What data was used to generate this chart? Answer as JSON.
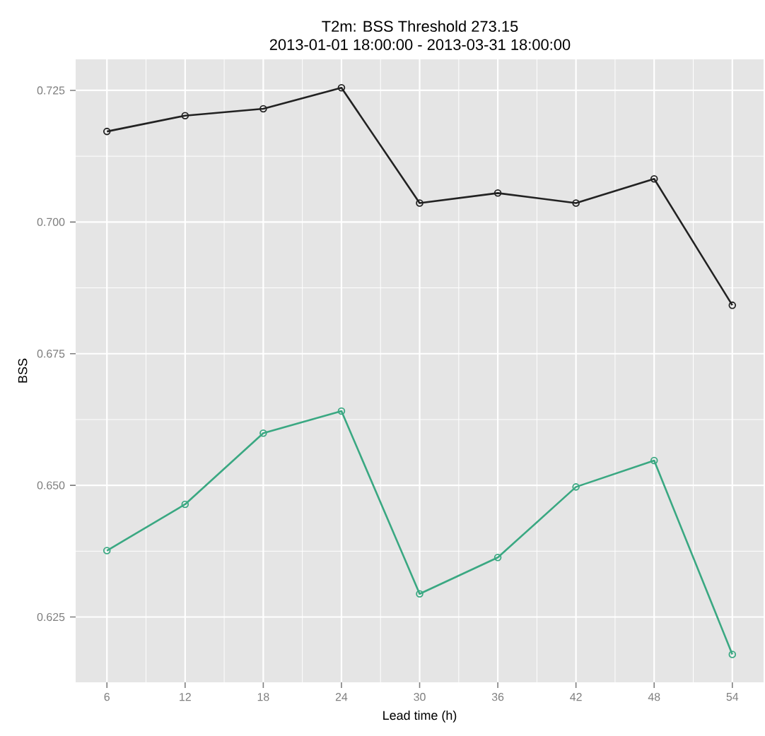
{
  "chart_data": {
    "type": "line",
    "title": "T2m: BSS Threshold 273.15",
    "subtitle": "2013-01-01 18:00:00 - 2013-03-31 18:00:00",
    "xlabel": "Lead time (h)",
    "ylabel": "BSS",
    "x": [
      6,
      12,
      18,
      24,
      30,
      36,
      42,
      48,
      54
    ],
    "series": [
      {
        "color": "#222222",
        "values": [
          0.7172,
          0.7202,
          0.7215,
          0.7255,
          0.7036,
          0.7055,
          0.7036,
          0.7082,
          0.6842
        ]
      },
      {
        "color": "#3aa882",
        "values": [
          0.6376,
          0.6464,
          0.6599,
          0.6641,
          0.6294,
          0.6363,
          0.6497,
          0.6547,
          0.6179
        ]
      }
    ],
    "xlim": [
      3.6,
      56.4
    ],
    "ylim": [
      0.6126,
      0.7309
    ],
    "xticks": [
      6,
      12,
      18,
      24,
      30,
      36,
      42,
      48,
      54
    ],
    "yticks": [
      0.625,
      {
        "value": 0.65,
        "label": "0.650"
      },
      0.675,
      {
        "value": 0.7,
        "label": "0.700"
      },
      0.725
    ],
    "grid": true,
    "marker": "circle",
    "line_style": "solid"
  }
}
